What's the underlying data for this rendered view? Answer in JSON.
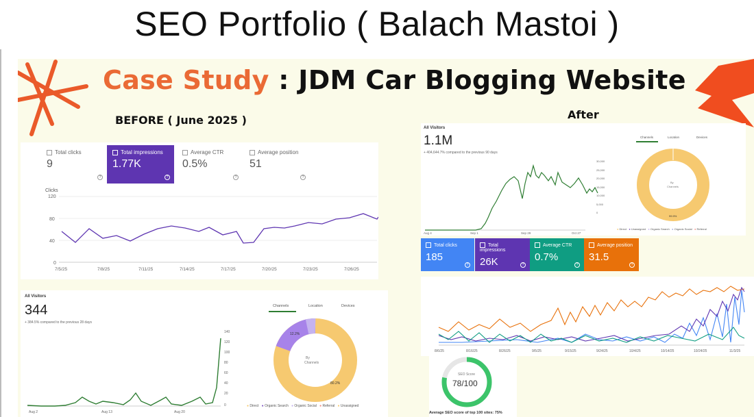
{
  "page_title": "SEO Portfolio ( Balach Mastoi )",
  "slide": {
    "heading_accent": "Case Study",
    "heading_rest": " : JDM Car Blogging Website",
    "before_label": "BEFORE ( June 2025 )",
    "after_label": "After"
  },
  "colors": {
    "accent_orange": "#ea6a35",
    "purple": "#5e35b1",
    "blue": "#4285f4",
    "teal": "#0f9d82",
    "orange": "#e8710a",
    "green": "#2e7d32"
  },
  "before": {
    "metrics": [
      {
        "label": "Total clicks",
        "value": "9",
        "selected": false
      },
      {
        "label": "Total impressions",
        "value": "1.77K",
        "selected": true
      },
      {
        "label": "Average CTR",
        "value": "0.5%",
        "selected": false
      },
      {
        "label": "Average position",
        "value": "51",
        "selected": false
      }
    ],
    "clicks_chart": {
      "series_label": "Clicks",
      "y_ticks": [
        "120",
        "80",
        "40",
        "0"
      ],
      "x_ticks": [
        "7/5/25",
        "7/8/25",
        "7/11/25",
        "7/14/25",
        "7/17/25",
        "7/20/25",
        "7/23/25",
        "7/26/25"
      ]
    },
    "visitors": {
      "label": "All Visitors",
      "value": "344",
      "change": "+ 384.5% compared to the previous 28 days",
      "x_ticks": [
        "Aug 2",
        "Aug 13",
        "Aug 20"
      ],
      "y_ticks": [
        "140",
        "120",
        "100",
        "80",
        "60",
        "40",
        "20",
        "0"
      ],
      "tabs": [
        "Channels",
        "Location",
        "Devices"
      ],
      "donut_center": [
        "By",
        "Channels"
      ],
      "donut_slice_label_1": "12.2%",
      "donut_slice_label_2": "80.2%",
      "legend": [
        "Direct",
        "Organic Search",
        "Organic Social",
        "Referral",
        "Unassigned"
      ]
    }
  },
  "after": {
    "visitors": {
      "label": "All Visitors",
      "value": "1.1M",
      "change": "+ 404,644.7% compared to the previous 90 days",
      "y_ticks": [
        "30,000",
        "25,000",
        "20,000",
        "15,000",
        "10,000",
        "5,000",
        "0"
      ],
      "x_ticks": [
        "Aug 4",
        "Sep 1",
        "Sep 29",
        "Oct 27"
      ],
      "tabs": [
        "Channels",
        "Location",
        "Devices"
      ],
      "donut_center": [
        "By",
        "Channels"
      ],
      "donut_slice_label": "99.9%",
      "legend": [
        "Direct",
        "Unassigned",
        "Organic Search",
        "Organic Social",
        "Referral"
      ]
    },
    "metrics": [
      {
        "label": "Total clicks",
        "value": "185",
        "color": "#4285f4"
      },
      {
        "label": "Total impressions",
        "value": "26K",
        "color": "#5e35b1"
      },
      {
        "label": "Average CTR",
        "value": "0.7%",
        "color": "#0f9d82"
      },
      {
        "label": "Average position",
        "value": "31.5",
        "color": "#e8710a"
      }
    ],
    "multi_chart": {
      "x_ticks": [
        "8/6/25",
        "8/16/25",
        "8/26/25",
        "9/5/25",
        "9/15/25",
        "9/24/25",
        "10/4/25",
        "10/14/25",
        "10/24/25",
        "11/3/25"
      ]
    },
    "seo_score": {
      "label": "SEO Score",
      "value": "78/100",
      "caption": "Average SEO score of top 100 sites: 75%"
    }
  }
}
